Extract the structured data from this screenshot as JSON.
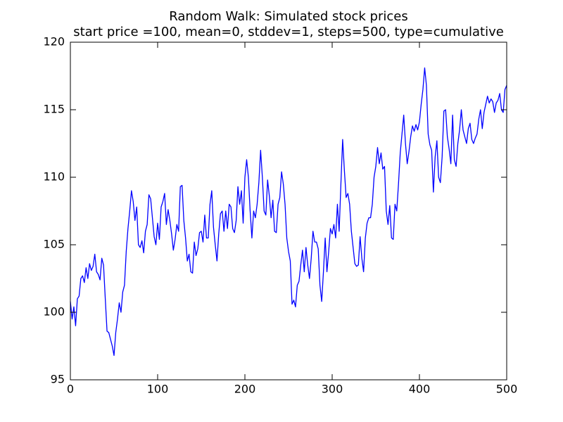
{
  "chart_data": {
    "type": "line",
    "title": "Random Walk: Simulated stock prices",
    "subtitle": "start price =100, mean=0, stddev=1, steps=500, type=cumulative",
    "xlim": [
      0,
      500
    ],
    "xticks": [
      0,
      100,
      200,
      300,
      400,
      500
    ],
    "ylim": [
      95,
      120
    ],
    "yticks": [
      95,
      100,
      105,
      110,
      115,
      120
    ],
    "grid": false,
    "series": [
      {
        "color": "#0000ff",
        "x": [
          0,
          2,
          4,
          6,
          8,
          10,
          12,
          14,
          16,
          18,
          20,
          22,
          24,
          26,
          28,
          30,
          32,
          34,
          36,
          38,
          40,
          42,
          44,
          46,
          48,
          50,
          52,
          54,
          56,
          58,
          60,
          62,
          64,
          66,
          68,
          70,
          72,
          74,
          76,
          78,
          80,
          82,
          84,
          86,
          88,
          90,
          92,
          94,
          96,
          98,
          100,
          102,
          104,
          106,
          108,
          110,
          112,
          114,
          116,
          118,
          120,
          122,
          124,
          126,
          128,
          130,
          132,
          134,
          136,
          138,
          140,
          142,
          144,
          146,
          148,
          150,
          152,
          154,
          156,
          158,
          160,
          162,
          164,
          166,
          168,
          170,
          172,
          174,
          176,
          178,
          180,
          182,
          184,
          186,
          188,
          190,
          192,
          194,
          196,
          198,
          200,
          202,
          204,
          206,
          208,
          210,
          212,
          214,
          216,
          218,
          220,
          222,
          224,
          226,
          228,
          230,
          232,
          234,
          236,
          238,
          240,
          242,
          244,
          246,
          248,
          250,
          252,
          254,
          256,
          258,
          260,
          262,
          264,
          266,
          268,
          270,
          272,
          274,
          276,
          278,
          280,
          282,
          284,
          286,
          288,
          290,
          292,
          294,
          296,
          298,
          300,
          302,
          304,
          306,
          308,
          310,
          312,
          314,
          316,
          318,
          320,
          322,
          324,
          326,
          328,
          330,
          332,
          334,
          336,
          338,
          340,
          342,
          344,
          346,
          348,
          350,
          352,
          354,
          356,
          358,
          360,
          362,
          364,
          366,
          368,
          370,
          372,
          374,
          376,
          378,
          380,
          382,
          384,
          386,
          388,
          390,
          392,
          394,
          396,
          398,
          400,
          402,
          404,
          406,
          408,
          410,
          412,
          414,
          416,
          418,
          420,
          422,
          424,
          426,
          428,
          430,
          432,
          434,
          436,
          438,
          440,
          442,
          444,
          446,
          448,
          450,
          452,
          454,
          456,
          458,
          460,
          462,
          464,
          466,
          468,
          470,
          472,
          474,
          476,
          478,
          480,
          482,
          484,
          486,
          488,
          490,
          492,
          494,
          496,
          498,
          500
        ],
        "values": [
          100.8,
          99.5,
          100.4,
          99.0,
          101.0,
          101.2,
          102.5,
          102.7,
          102.2,
          103.3,
          102.5,
          103.6,
          103.1,
          103.4,
          104.3,
          103.0,
          102.8,
          102.4,
          104.0,
          103.5,
          101.0,
          98.6,
          98.5,
          98.0,
          97.5,
          96.8,
          98.5,
          99.5,
          100.7,
          100.0,
          101.5,
          102.0,
          104.5,
          106.2,
          107.5,
          109.0,
          108.2,
          106.8,
          107.8,
          105.0,
          104.8,
          105.3,
          104.4,
          106.0,
          106.5,
          108.7,
          108.4,
          107.0,
          105.6,
          105.0,
          106.6,
          105.4,
          107.8,
          108.2,
          108.8,
          106.5,
          107.6,
          106.8,
          105.8,
          104.6,
          105.4,
          106.5,
          106.0,
          109.3,
          109.4,
          106.8,
          105.5,
          103.8,
          104.3,
          103.0,
          102.9,
          105.2,
          104.2,
          104.7,
          105.9,
          106.0,
          105.2,
          107.2,
          105.5,
          105.5,
          108.0,
          109.0,
          106.3,
          105.0,
          103.8,
          105.8,
          107.3,
          107.5,
          106.0,
          107.5,
          106.2,
          108.0,
          107.8,
          106.2,
          105.9,
          106.8,
          109.3,
          108.0,
          109.0,
          106.6,
          110.0,
          111.3,
          110.0,
          107.5,
          105.5,
          107.5,
          107.0,
          108.0,
          109.6,
          112.0,
          110.0,
          107.5,
          107.2,
          109.8,
          108.6,
          107.0,
          108.3,
          106.0,
          105.9,
          108.0,
          108.5,
          110.4,
          109.5,
          108.0,
          105.5,
          104.5,
          103.8,
          100.6,
          100.9,
          100.4,
          102.0,
          102.3,
          103.5,
          104.6,
          103.0,
          104.8,
          103.5,
          102.5,
          104.0,
          106.0,
          105.2,
          105.2,
          104.7,
          102.0,
          100.8,
          103.0,
          105.5,
          103.0,
          104.5,
          106.2,
          105.8,
          106.5,
          105.5,
          108.0,
          106.0,
          109.5,
          112.8,
          110.5,
          108.5,
          108.8,
          108.0,
          106.0,
          104.8,
          103.6,
          103.4,
          103.5,
          105.6,
          104.0,
          103.0,
          105.5,
          106.6,
          107.0,
          107.0,
          108.0,
          110.0,
          110.8,
          112.2,
          111.0,
          111.8,
          110.6,
          110.8,
          107.5,
          106.5,
          107.9,
          105.5,
          105.4,
          108.0,
          107.5,
          109.5,
          111.8,
          113.2,
          114.6,
          112.5,
          111.0,
          111.9,
          113.0,
          113.8,
          113.4,
          113.9,
          113.5,
          114.1,
          115.4,
          116.5,
          118.1,
          116.8,
          113.2,
          112.4,
          112.0,
          108.9,
          111.5,
          112.7,
          110.0,
          109.6,
          111.5,
          114.9,
          115.0,
          113.0,
          112.1,
          111.0,
          114.6,
          111.3,
          110.8,
          112.5,
          113.5,
          115.0,
          113.5,
          113.0,
          112.5,
          113.6,
          114.0,
          112.8,
          112.5,
          112.9,
          113.2,
          114.3,
          115.0,
          113.6,
          114.8,
          115.4,
          116.0,
          115.5,
          115.8,
          115.6,
          114.8,
          115.5,
          115.7,
          116.2,
          115.0,
          114.8,
          116.5,
          116.8
        ]
      }
    ]
  }
}
